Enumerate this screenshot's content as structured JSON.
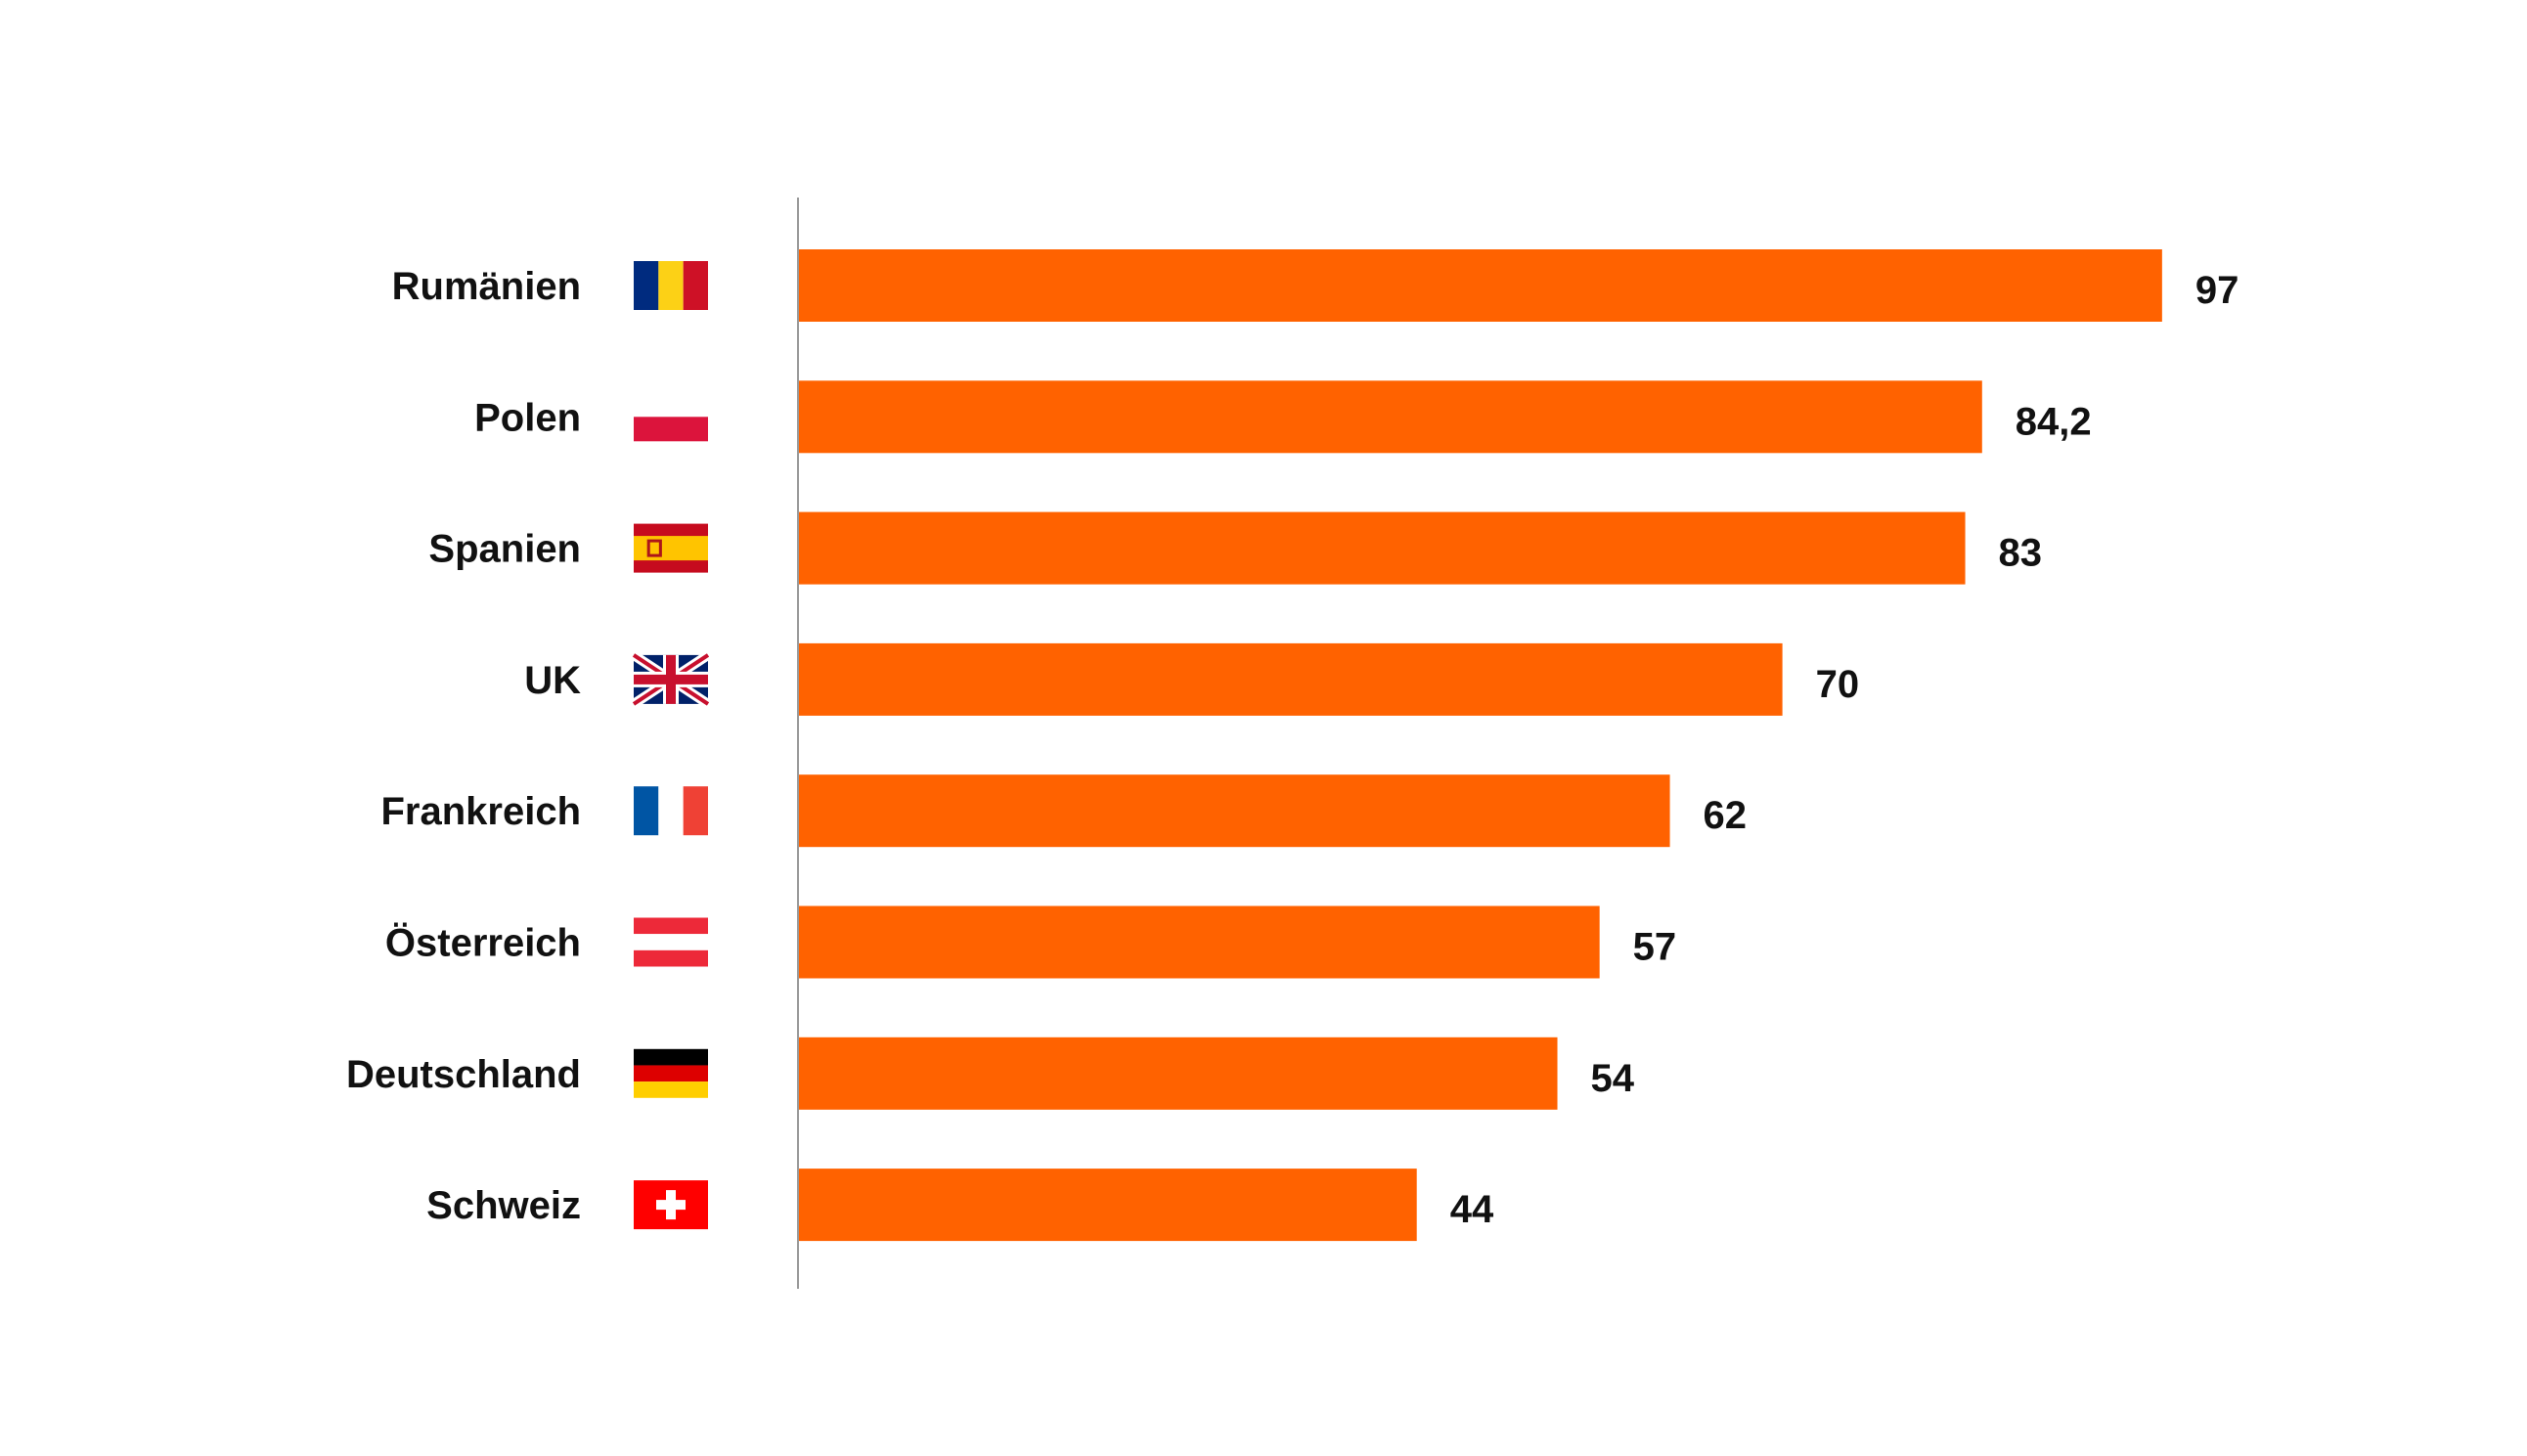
{
  "colors": {
    "bar": "#ff6200",
    "axis": "#9a9a9a",
    "text": "#111111"
  },
  "chart_data": {
    "type": "bar",
    "orientation": "horizontal",
    "categories": [
      "Rumänien",
      "Polen",
      "Spanien",
      "UK",
      "Frankreich",
      "Österreich",
      "Deutschland",
      "Schweiz"
    ],
    "values": [
      97,
      84.2,
      83,
      70,
      62,
      57,
      54,
      44
    ],
    "value_labels": [
      "97",
      "84,2",
      "83",
      "70",
      "62",
      "57",
      "54",
      "44"
    ],
    "flags": [
      "romania-flag-icon",
      "poland-flag-icon",
      "spain-flag-icon",
      "uk-flag-icon",
      "france-flag-icon",
      "austria-flag-icon",
      "germany-flag-icon",
      "switzerland-flag-icon"
    ],
    "title": "",
    "xlabel": "",
    "ylabel": "",
    "grid": false,
    "legend": "none"
  }
}
